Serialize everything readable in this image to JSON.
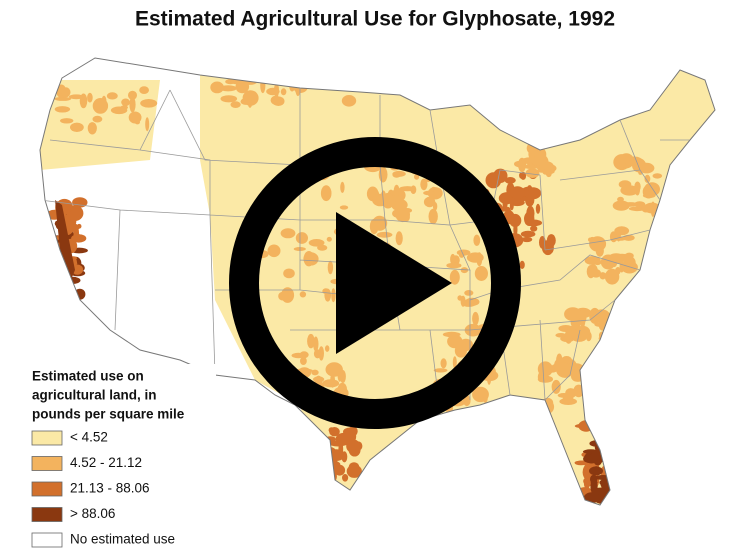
{
  "title": "Estimated Agricultural Use for Glyphosate, 1992",
  "legend": {
    "title_lines": [
      "Estimated use on",
      "agricultural land, in",
      "pounds per square mile"
    ],
    "items": [
      {
        "label": "< 4.52",
        "color": "#fbe9a6"
      },
      {
        "label": "4.52 - 21.12",
        "color": "#f3b35e"
      },
      {
        "label": "21.13 - 88.06",
        "color": "#d2702c"
      },
      {
        "label": "> 88.06",
        "color": "#8a3810"
      },
      {
        "label": "No estimated use",
        "color": "#ffffff"
      }
    ]
  }
}
